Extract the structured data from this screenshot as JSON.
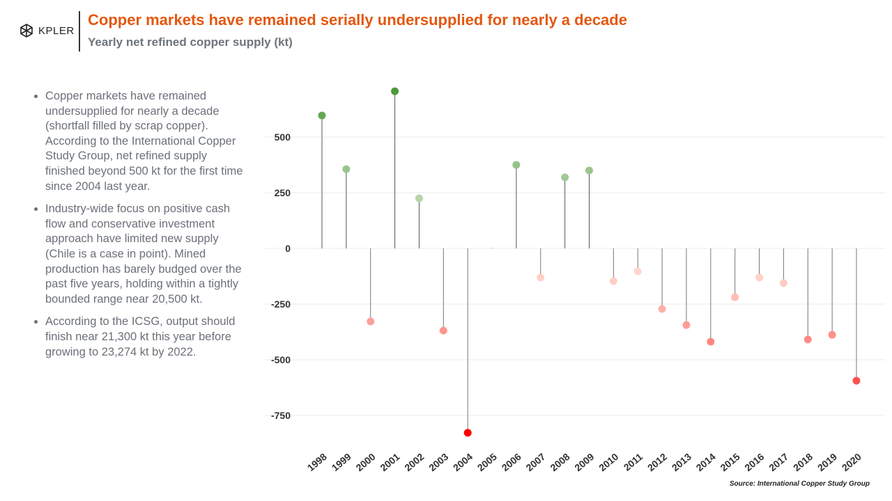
{
  "header": {
    "logo_text": "KPLER",
    "title": "Copper markets have remained serially undersupplied for nearly a decade",
    "subtitle": "Yearly net refined copper supply (kt)"
  },
  "bullets": [
    "Copper markets have remained undersupplied for nearly a decade (shortfall filled by scrap copper). According to the International Copper Study Group, net refined supply finished beyond 500 kt for the first time since 2004 last year.",
    "Industry-wide focus on positive cash flow and conservative investment approach have limited new supply (Chile is a case in point).  Mined production has barely budged over the past five years, holding within a tightly bounded range near 20,500 kt.",
    "According to the ICSG, output should finish near 21,300 kt this year before growing to 23,274 kt by 2022."
  ],
  "source": "Source: International Copper Study Group",
  "colors": {
    "positive": "#4e9a3a",
    "negative": "#ff0000",
    "title": "#e3580f"
  },
  "chart_data": {
    "type": "lollipop",
    "categories": [
      "1998",
      "1999",
      "2000",
      "2001",
      "2002",
      "2003",
      "2004",
      "2005",
      "2006",
      "2007",
      "2008",
      "2009",
      "2010",
      "2011",
      "2012",
      "2013",
      "2014",
      "2015",
      "2016",
      "2017",
      "2018",
      "2019",
      "2020"
    ],
    "values": [
      597,
      356,
      -328,
      706,
      225,
      -369,
      -828,
      2,
      375,
      -131,
      319,
      350,
      -147,
      -103,
      -272,
      -344,
      -419,
      -219,
      -131,
      -156,
      -409,
      -388,
      -594
    ],
    "yticks": [
      500,
      250,
      0,
      -250,
      -500,
      -750
    ],
    "ylim": [
      -850,
      750
    ],
    "grid": true
  }
}
